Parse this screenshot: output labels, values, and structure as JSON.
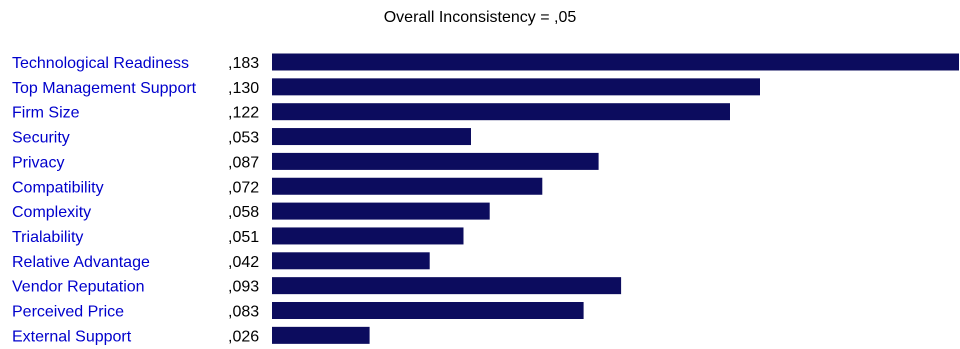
{
  "chart_data": {
    "type": "bar",
    "orientation": "horizontal",
    "title": "Overall Inconsistency = ,05",
    "categories": [
      "Technological Readiness",
      "Top Management Support",
      "Firm Size",
      "Security",
      "Privacy",
      "Compatibility",
      "Complexity",
      "Trialability",
      "Relative Advantage",
      "Vendor Reputation",
      "Perceived Price",
      "External Support"
    ],
    "values": [
      0.183,
      0.13,
      0.122,
      0.053,
      0.087,
      0.072,
      0.058,
      0.051,
      0.042,
      0.093,
      0.083,
      0.026
    ],
    "value_labels": [
      ",183",
      ",130",
      ",122",
      ",053",
      ",087",
      ",072",
      ",058",
      ",051",
      ",042",
      ",093",
      ",083",
      ",026"
    ],
    "xlabel": "",
    "ylabel": "",
    "xlim": [
      0,
      0.183
    ],
    "grid": false,
    "legend": "none",
    "colors": {
      "bar": "#0c0c5e",
      "category_text": "#0000cc",
      "value_text": "#000000"
    }
  }
}
